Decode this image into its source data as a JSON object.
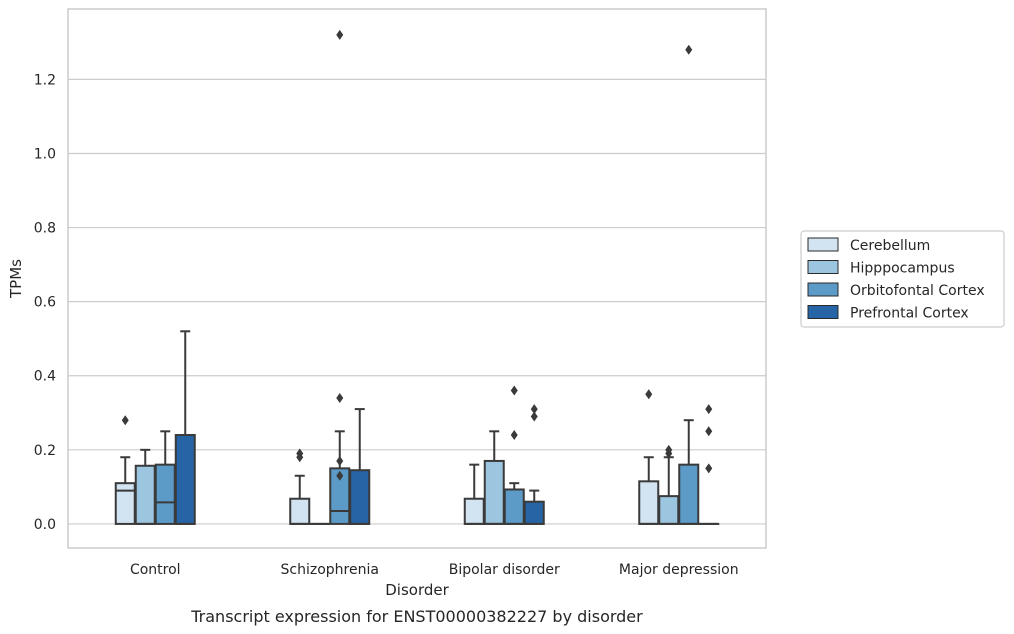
{
  "chart_data": {
    "type": "box",
    "title": "",
    "caption": "Transcript expression for ENST00000382227 by disorder",
    "xlabel": "Disorder",
    "ylabel": "TPMs",
    "ylim": [
      -0.065,
      1.39
    ],
    "yticks": [
      "0.0",
      "0.2",
      "0.4",
      "0.6",
      "0.8",
      "1.0",
      "1.2"
    ],
    "grid": "horizontal",
    "legend_position": "right",
    "categories": [
      "Control",
      "Schizophrenia",
      "Bipolar disorder",
      "Major depression"
    ],
    "series": [
      {
        "name": "Cerebellum",
        "color": "#d2e3f2",
        "boxes": [
          {
            "q1": 0.0,
            "median": 0.09,
            "q3": 0.11,
            "whisker_low": 0.0,
            "whisker_high": 0.18,
            "outliers": [
              0.28
            ]
          },
          {
            "q1": 0.0,
            "median": 0.0,
            "q3": 0.068,
            "whisker_low": 0.0,
            "whisker_high": 0.13,
            "outliers": [
              0.18,
              0.19
            ]
          },
          {
            "q1": 0.0,
            "median": 0.0,
            "q3": 0.068,
            "whisker_low": 0.0,
            "whisker_high": 0.16,
            "outliers": []
          },
          {
            "q1": 0.0,
            "median": 0.0,
            "q3": 0.115,
            "whisker_low": 0.0,
            "whisker_high": 0.18,
            "outliers": [
              0.35
            ]
          }
        ]
      },
      {
        "name": "Hipppocampus",
        "color": "#9cc5df",
        "boxes": [
          {
            "q1": 0.0,
            "median": 0.0,
            "q3": 0.157,
            "whisker_low": 0.0,
            "whisker_high": 0.2,
            "outliers": []
          },
          {
            "q1": 0.0,
            "median": 0.0,
            "q3": 0.0,
            "whisker_low": 0.0,
            "whisker_high": 0.0,
            "outliers": []
          },
          {
            "q1": 0.0,
            "median": 0.0,
            "q3": 0.17,
            "whisker_low": 0.0,
            "whisker_high": 0.25,
            "outliers": []
          },
          {
            "q1": 0.0,
            "median": 0.0,
            "q3": 0.075,
            "whisker_low": 0.0,
            "whisker_high": 0.18,
            "outliers": [
              0.19,
              0.2
            ]
          }
        ]
      },
      {
        "name": "Orbitofontal Cortex",
        "color": "#5c9ac7",
        "boxes": [
          {
            "q1": 0.0,
            "median": 0.058,
            "q3": 0.16,
            "whisker_low": 0.0,
            "whisker_high": 0.25,
            "outliers": []
          },
          {
            "q1": 0.0,
            "median": 0.035,
            "q3": 0.15,
            "whisker_low": 0.0,
            "whisker_high": 0.25,
            "outliers": [
              0.17,
              0.13,
              0.34,
              1.32
            ]
          },
          {
            "q1": 0.0,
            "median": 0.0,
            "q3": 0.093,
            "whisker_low": 0.0,
            "whisker_high": 0.11,
            "outliers": [
              0.24,
              0.36
            ]
          },
          {
            "q1": 0.0,
            "median": 0.0,
            "q3": 0.16,
            "whisker_low": 0.0,
            "whisker_high": 0.28,
            "outliers": [
              1.28
            ]
          }
        ]
      },
      {
        "name": "Prefrontal Cortex",
        "color": "#2664a6",
        "boxes": [
          {
            "q1": 0.0,
            "median": 0.0,
            "q3": 0.24,
            "whisker_low": 0.0,
            "whisker_high": 0.52,
            "outliers": []
          },
          {
            "q1": 0.0,
            "median": 0.0,
            "q3": 0.145,
            "whisker_low": 0.0,
            "whisker_high": 0.31,
            "outliers": []
          },
          {
            "q1": 0.0,
            "median": 0.0,
            "q3": 0.06,
            "whisker_low": 0.0,
            "whisker_high": 0.09,
            "outliers": [
              0.29,
              0.31
            ]
          },
          {
            "q1": 0.0,
            "median": 0.0,
            "q3": 0.0,
            "whisker_low": 0.0,
            "whisker_high": 0.0,
            "outliers": [
              0.15,
              0.25,
              0.31
            ]
          }
        ]
      }
    ]
  }
}
